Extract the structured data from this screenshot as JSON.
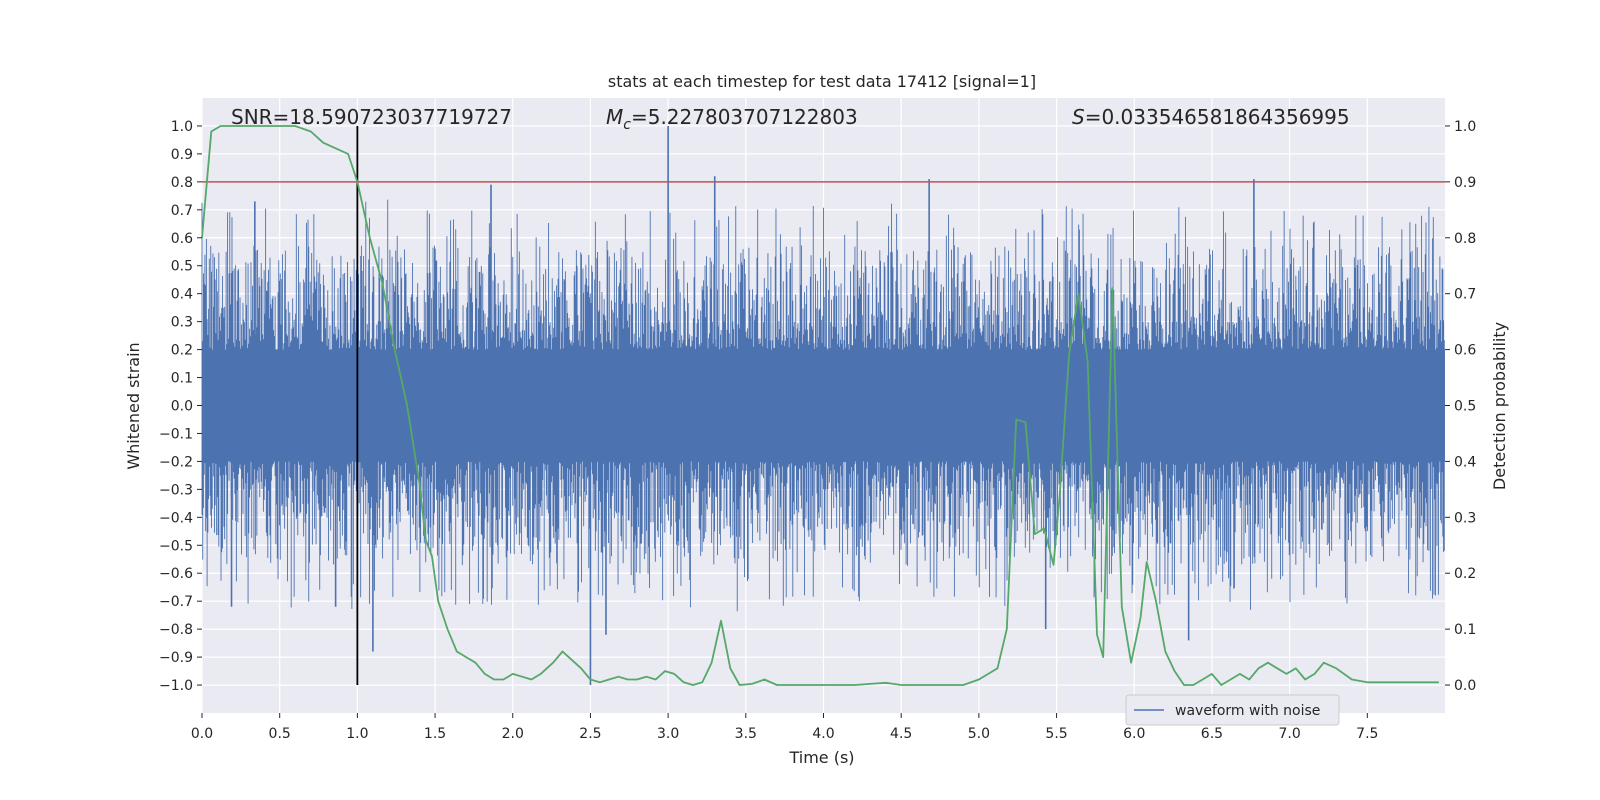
{
  "chart_data": {
    "type": "line",
    "title": "stats at each timestep for test data 17412 [signal=1]",
    "xlabel": "Time (s)",
    "ylabel": "Whitened strain",
    "y2label": "Detection probability",
    "xlim": [
      0.0,
      8.0
    ],
    "ylim": [
      -1.1,
      1.1
    ],
    "y2lim": [
      -0.05,
      1.05
    ],
    "xticks": [
      0.0,
      0.5,
      1.0,
      1.5,
      2.0,
      2.5,
      3.0,
      3.5,
      4.0,
      4.5,
      5.0,
      5.5,
      6.0,
      6.5,
      7.0,
      7.5
    ],
    "xtick_labels": [
      "0.0",
      "0.5",
      "1.0",
      "1.5",
      "2.0",
      "2.5",
      "3.0",
      "3.5",
      "4.0",
      "4.5",
      "5.0",
      "5.5",
      "6.0",
      "6.5",
      "7.0",
      "7.5"
    ],
    "yticks": [
      1.0,
      0.9,
      0.8,
      0.7,
      0.6,
      0.5,
      0.4,
      0.3,
      0.2,
      0.1,
      0.0,
      -0.1,
      -0.2,
      -0.3,
      -0.4,
      -0.5,
      -0.6,
      -0.7,
      -0.8,
      -0.9,
      -1.0
    ],
    "ytick_labels": [
      "1.0",
      "0.9",
      "0.8",
      "0.7",
      "0.6",
      "0.5",
      "0.4",
      "0.3",
      "0.2",
      "0.1",
      "0.0",
      "−0.1",
      "−0.2",
      "−0.3",
      "−0.4",
      "−0.5",
      "−0.6",
      "−0.7",
      "−0.8",
      "−0.9",
      "−1.0"
    ],
    "y2ticks": [
      1.0,
      0.9,
      0.8,
      0.7,
      0.6,
      0.5,
      0.4,
      0.3,
      0.2,
      0.1,
      0.0
    ],
    "y2tick_labels": [
      "1.0",
      "0.9",
      "0.8",
      "0.7",
      "0.6",
      "0.5",
      "0.4",
      "0.3",
      "0.2",
      "0.1",
      "0.0"
    ],
    "grid": true,
    "annotations": {
      "snr": "SNR=18.590723037719727",
      "mc_symbol": "M",
      "mc_sub": "c",
      "mc_value": "=5.227803707122803",
      "s_symbol": "S",
      "s_value": "=0.033546581864356995"
    },
    "legend": {
      "position": "lower-right",
      "entries": [
        "waveform with noise"
      ]
    },
    "threshold": {
      "axis": "y2",
      "value": 0.9,
      "color": "#c44e52"
    },
    "vertical_marker": {
      "x": 1.0,
      "ymin": -1.0,
      "ymax": 1.0,
      "color": "#000000"
    },
    "waveform": {
      "name": "waveform with noise",
      "color": "#4c72b0",
      "time_range": [
        0.0,
        8.0
      ],
      "core_amplitude": 0.2,
      "typical_peak": 0.5,
      "max_peak": 1.0,
      "min_peak": -1.0,
      "prominent_peaks": [
        {
          "x": 3.0,
          "y": 1.0
        },
        {
          "x": 3.3,
          "y": 0.82
        },
        {
          "x": 4.68,
          "y": 0.81
        },
        {
          "x": 6.77,
          "y": 0.81
        },
        {
          "x": 1.86,
          "y": 0.79
        },
        {
          "x": 0.34,
          "y": 0.73
        },
        {
          "x": 2.5,
          "y": -1.0
        },
        {
          "x": 1.1,
          "y": -0.88
        },
        {
          "x": 2.6,
          "y": -0.82
        },
        {
          "x": 5.43,
          "y": -0.8
        },
        {
          "x": 6.35,
          "y": -0.84
        },
        {
          "x": 0.86,
          "y": -0.72
        },
        {
          "x": 0.19,
          "y": -0.72
        }
      ]
    },
    "series": [
      {
        "name": "detection probability",
        "axis": "y2",
        "color": "#55a868",
        "x": [
          0.0,
          0.06,
          0.12,
          0.2,
          0.3,
          0.4,
          0.5,
          0.6,
          0.7,
          0.78,
          0.86,
          0.94,
          1.0,
          1.08,
          1.16,
          1.24,
          1.32,
          1.4,
          1.44,
          1.48,
          1.52,
          1.58,
          1.64,
          1.7,
          1.76,
          1.82,
          1.88,
          1.94,
          2.0,
          2.06,
          2.12,
          2.18,
          2.26,
          2.32,
          2.38,
          2.44,
          2.5,
          2.56,
          2.62,
          2.68,
          2.74,
          2.8,
          2.86,
          2.92,
          2.98,
          3.04,
          3.1,
          3.16,
          3.22,
          3.28,
          3.34,
          3.4,
          3.46,
          3.54,
          3.62,
          3.7,
          3.8,
          3.9,
          4.0,
          4.1,
          4.2,
          4.3,
          4.4,
          4.5,
          4.6,
          4.7,
          4.8,
          4.9,
          5.0,
          5.06,
          5.12,
          5.18,
          5.24,
          5.3,
          5.36,
          5.42,
          5.48,
          5.52,
          5.58,
          5.64,
          5.7,
          5.76,
          5.8,
          5.86,
          5.92,
          5.98,
          6.04,
          6.08,
          6.14,
          6.2,
          6.26,
          6.32,
          6.38,
          6.44,
          6.5,
          6.56,
          6.62,
          6.68,
          6.74,
          6.8,
          6.86,
          6.92,
          6.98,
          7.04,
          7.1,
          7.16,
          7.22,
          7.3,
          7.4,
          7.5,
          7.6,
          7.7,
          7.8,
          7.9,
          7.96
        ],
        "values": [
          0.8,
          0.99,
          1.0,
          1.0,
          1.0,
          1.0,
          1.0,
          1.0,
          0.99,
          0.97,
          0.96,
          0.95,
          0.9,
          0.8,
          0.72,
          0.6,
          0.5,
          0.36,
          0.26,
          0.23,
          0.15,
          0.1,
          0.06,
          0.05,
          0.04,
          0.02,
          0.01,
          0.01,
          0.02,
          0.015,
          0.01,
          0.02,
          0.04,
          0.06,
          0.045,
          0.03,
          0.01,
          0.005,
          0.01,
          0.015,
          0.01,
          0.01,
          0.015,
          0.01,
          0.025,
          0.02,
          0.005,
          0.0,
          0.005,
          0.04,
          0.115,
          0.03,
          0.0,
          0.002,
          0.01,
          0.0,
          0.0,
          0.0,
          0.0,
          0.0,
          0.0,
          0.002,
          0.004,
          0.0,
          0.0,
          0.0,
          0.0,
          0.0,
          0.01,
          0.02,
          0.03,
          0.1,
          0.475,
          0.47,
          0.27,
          0.28,
          0.215,
          0.34,
          0.59,
          0.7,
          0.58,
          0.09,
          0.05,
          0.71,
          0.14,
          0.04,
          0.12,
          0.22,
          0.15,
          0.06,
          0.025,
          0.0,
          0.0,
          0.01,
          0.02,
          0.0,
          0.01,
          0.02,
          0.01,
          0.03,
          0.04,
          0.03,
          0.02,
          0.03,
          0.01,
          0.02,
          0.04,
          0.03,
          0.01,
          0.005,
          0.005,
          0.005,
          0.005,
          0.005,
          0.005
        ],
        "note": "values in detection-probability units"
      }
    ]
  }
}
